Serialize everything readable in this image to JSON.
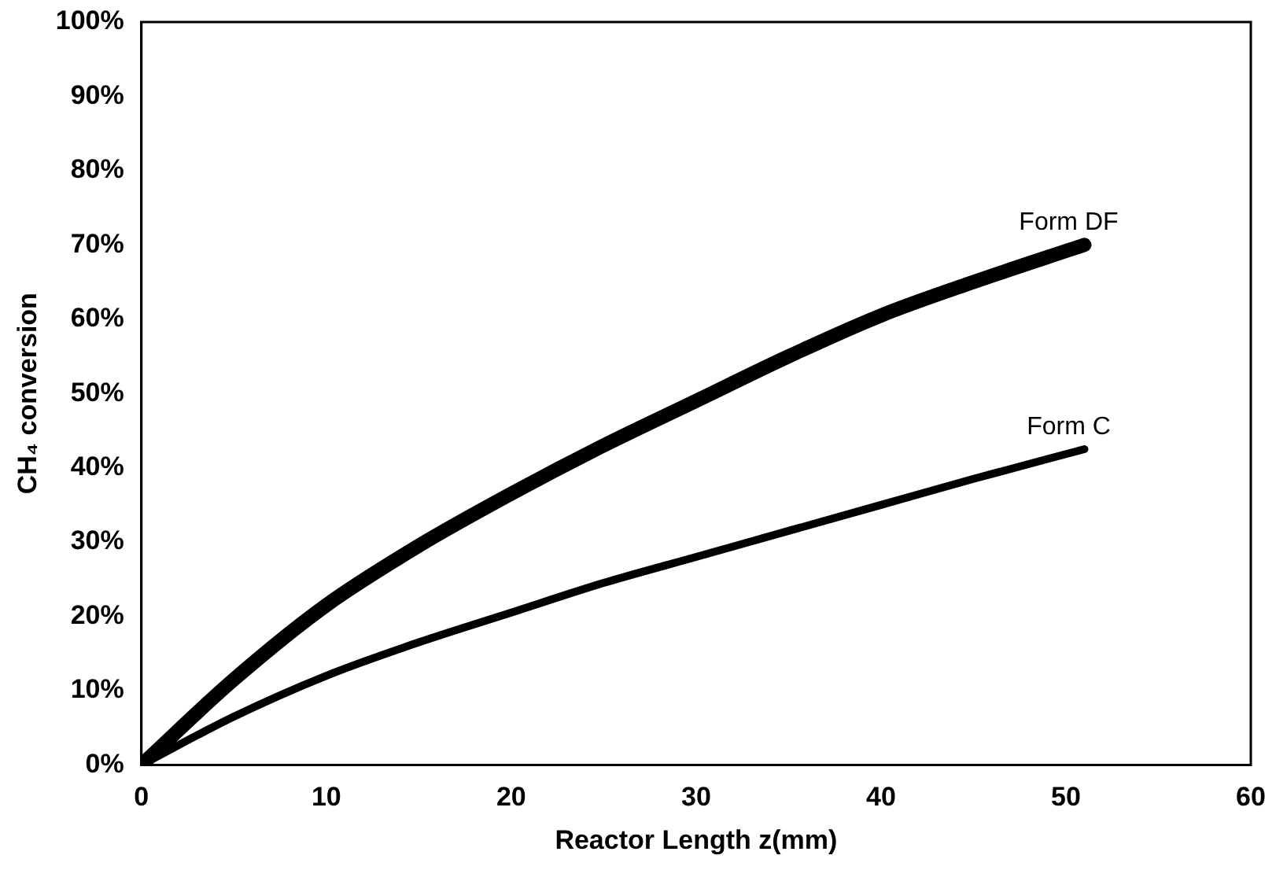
{
  "chart_data": {
    "type": "line",
    "xlabel": "Reactor Length z(mm)",
    "ylabel": "CH₄ conversion",
    "xlim": [
      0,
      60
    ],
    "xticks": [
      0,
      10,
      20,
      30,
      40,
      50,
      60
    ],
    "ylim": [
      0,
      100
    ],
    "yticks": [
      {
        "value": 0,
        "label": "0%"
      },
      {
        "value": 10,
        "label": "10%"
      },
      {
        "value": 20,
        "label": "20%"
      },
      {
        "value": 30,
        "label": "30%"
      },
      {
        "value": 40,
        "label": "40%"
      },
      {
        "value": 50,
        "label": "50%"
      },
      {
        "value": 60,
        "label": "60%"
      },
      {
        "value": 70,
        "label": "70%"
      },
      {
        "value": 80,
        "label": "80%"
      },
      {
        "value": 90,
        "label": "90%"
      },
      {
        "value": 100,
        "label": "100%"
      }
    ],
    "grid": false,
    "legend": false,
    "marker": "none",
    "line_style": "solid",
    "series": [
      {
        "name": "Form DF",
        "color": "#000000",
        "x": [
          0,
          5,
          10,
          15,
          20,
          25,
          30,
          35,
          40,
          45,
          51
        ],
        "values": [
          0,
          11.5,
          21.5,
          29.5,
          36.5,
          43,
          49,
          55,
          60.5,
          65,
          70
        ]
      },
      {
        "name": "Form C",
        "color": "#000000",
        "x": [
          0,
          5,
          10,
          15,
          20,
          25,
          30,
          35,
          40,
          45,
          51
        ],
        "values": [
          0,
          6.5,
          12,
          16.5,
          20.5,
          24.5,
          28,
          31.5,
          35,
          38.5,
          42.5
        ]
      }
    ]
  }
}
